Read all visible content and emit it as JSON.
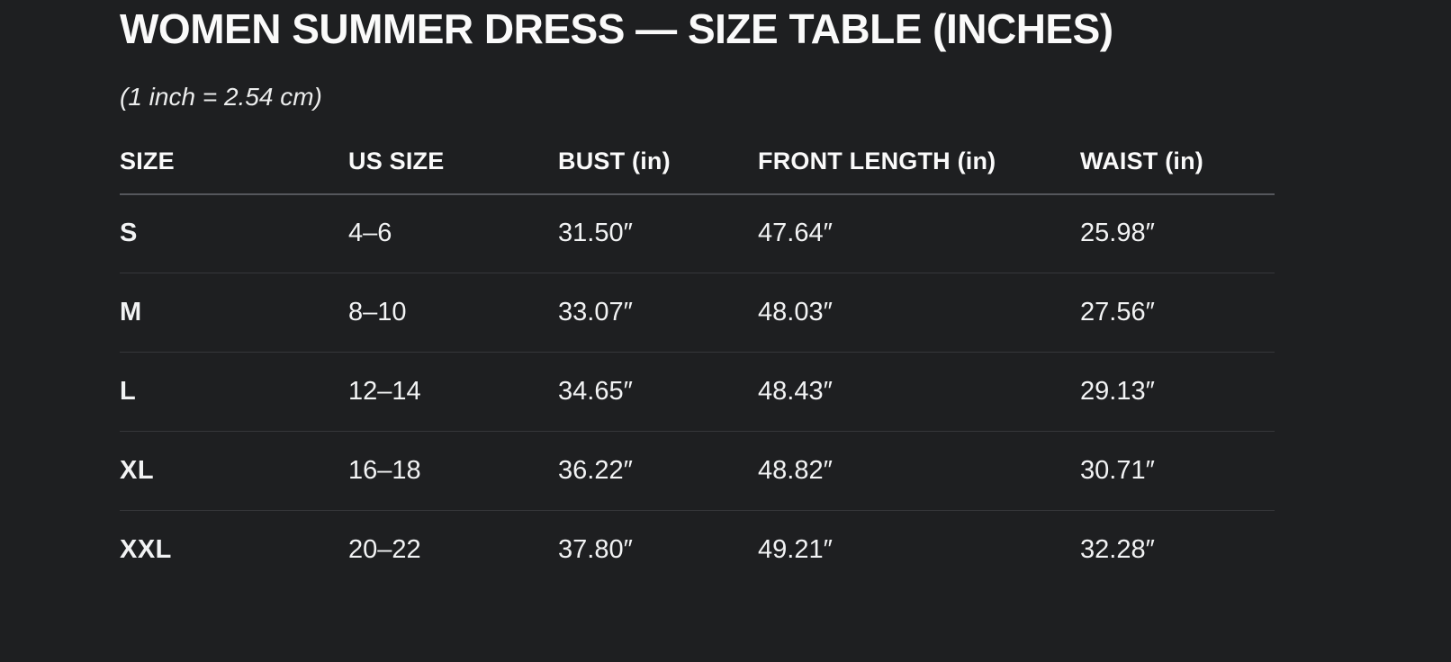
{
  "page": {
    "title": "WOMEN SUMMER DRESS — SIZE TABLE (INCHES)",
    "subtitle": "(1 inch = 2.54 cm)"
  },
  "table": {
    "columns": [
      "SIZE",
      "US SIZE",
      "BUST (in)",
      "FRONT LENGTH (in)",
      "WAIST (in)"
    ],
    "rows": [
      {
        "size": "S",
        "us_size": "4–6",
        "bust": "31.50″",
        "front_length": "47.64″",
        "waist": "25.98″"
      },
      {
        "size": "M",
        "us_size": "8–10",
        "bust": "33.07″",
        "front_length": "48.03″",
        "waist": "27.56″"
      },
      {
        "size": "L",
        "us_size": "12–14",
        "bust": "34.65″",
        "front_length": "48.43″",
        "waist": "29.13″"
      },
      {
        "size": "XL",
        "us_size": "16–18",
        "bust": "36.22″",
        "front_length": "48.82″",
        "waist": "30.71″"
      },
      {
        "size": "XXL",
        "us_size": "20–22",
        "bust": "37.80″",
        "front_length": "49.21″",
        "waist": "32.28″"
      }
    ]
  },
  "chart_data": {
    "type": "table",
    "title": "WOMEN SUMMER DRESS — SIZE TABLE (INCHES)",
    "note": "(1 inch = 2.54 cm)",
    "columns": [
      "SIZE",
      "US SIZE",
      "BUST (in)",
      "FRONT LENGTH (in)",
      "WAIST (in)"
    ],
    "rows": [
      [
        "S",
        "4–6",
        31.5,
        47.64,
        25.98
      ],
      [
        "M",
        "8–10",
        33.07,
        48.03,
        27.56
      ],
      [
        "L",
        "12–14",
        34.65,
        48.43,
        29.13
      ],
      [
        "XL",
        "16–18",
        36.22,
        48.82,
        30.71
      ],
      [
        "XXL",
        "20–22",
        37.8,
        49.21,
        32.28
      ]
    ],
    "units": "inches"
  },
  "colors": {
    "background": "#1e1f21",
    "text": "#f4f5f6",
    "header_rule": "#55575c",
    "row_rule": "#35363a"
  }
}
